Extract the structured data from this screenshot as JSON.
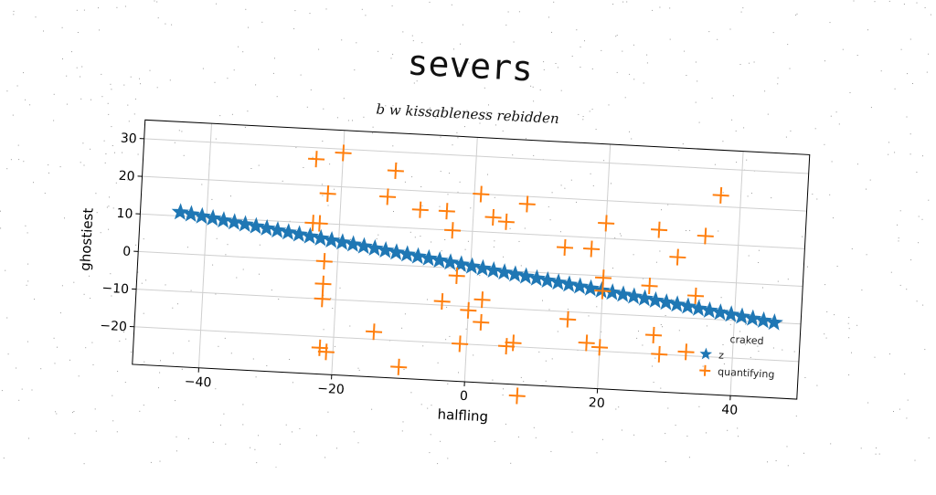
{
  "chart_data": {
    "type": "scatter",
    "title": "severs",
    "subtitle": "b w kissableness rebidden",
    "xlabel": "halfling",
    "ylabel": "ghostiest",
    "xlim": [
      -50,
      50
    ],
    "ylim": [
      -30,
      35
    ],
    "xticks": [
      -40,
      -20,
      0,
      20,
      40
    ],
    "yticks": [
      -20,
      -10,
      0,
      10,
      20,
      30
    ],
    "grid": true,
    "legend": {
      "title": "craked",
      "position": "bottom-right"
    },
    "series": [
      {
        "name": "z",
        "marker": "star",
        "color": "#1f77b4",
        "line": {
          "x_start": -44,
          "x_end": 46,
          "y_start": 11,
          "y_end": -10,
          "count": 56
        }
      },
      {
        "name": "quantifying",
        "marker": "plus",
        "color": "#ff7f0e",
        "points": [
          [
            -24,
            27
          ],
          [
            -20,
            29
          ],
          [
            -12,
            25
          ],
          [
            -22,
            18
          ],
          [
            -13,
            18
          ],
          [
            -8,
            15
          ],
          [
            -4,
            15
          ],
          [
            -3,
            10
          ],
          [
            -24,
            10
          ],
          [
            -23,
            10
          ],
          [
            1,
            20
          ],
          [
            3,
            14
          ],
          [
            5,
            13
          ],
          [
            8,
            18
          ],
          [
            20,
            14
          ],
          [
            28,
            13
          ],
          [
            35,
            12
          ],
          [
            37,
            23
          ],
          [
            14,
            7
          ],
          [
            18,
            7
          ],
          [
            31,
            6
          ],
          [
            -22,
            0
          ],
          [
            20,
            -0.5
          ],
          [
            -2,
            -2
          ],
          [
            27,
            -2
          ],
          [
            20,
            -4
          ],
          [
            34,
            -4
          ],
          [
            -22,
            -6
          ],
          [
            -22,
            -10
          ],
          [
            -4,
            -9
          ],
          [
            0,
            -11
          ],
          [
            2,
            -14
          ],
          [
            2,
            -8
          ],
          [
            15,
            -12
          ],
          [
            28,
            -15
          ],
          [
            -14,
            -18
          ],
          [
            -1,
            -20
          ],
          [
            6,
            -20
          ],
          [
            7,
            -19
          ],
          [
            18,
            -18
          ],
          [
            20,
            -19
          ],
          [
            29,
            -20
          ],
          [
            33,
            -19
          ],
          [
            -22,
            -23
          ],
          [
            -21,
            -24
          ],
          [
            -10,
            -27
          ],
          [
            8,
            -33
          ]
        ]
      }
    ]
  }
}
